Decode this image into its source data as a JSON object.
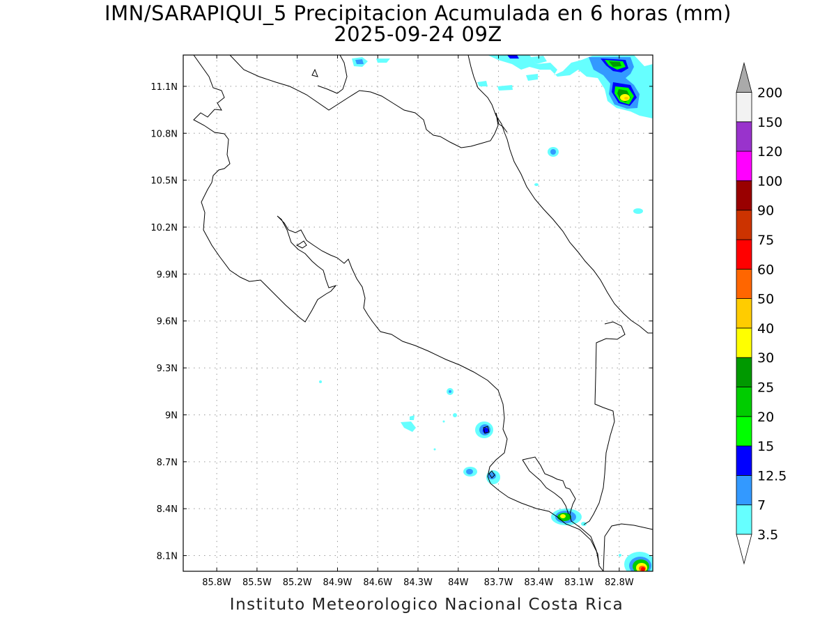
{
  "title": {
    "line1": "IMN/SARAPIQUI_5 Precipitacion Acumulada en 6 horas (mm)",
    "line2": "2025-09-24 09Z"
  },
  "footer": {
    "credit": "Instituto Meteorologico Nacional Costa Rica"
  },
  "map": {
    "lon_range": [
      -86.05,
      -82.55
    ],
    "lat_range": [
      8.0,
      11.3
    ],
    "lon_ticks": [
      {
        "value": -85.8,
        "label": "85.8W"
      },
      {
        "value": -85.5,
        "label": "85.5W"
      },
      {
        "value": -85.2,
        "label": "85.2W"
      },
      {
        "value": -84.9,
        "label": "84.9W"
      },
      {
        "value": -84.6,
        "label": "84.6W"
      },
      {
        "value": -84.3,
        "label": "84.3W"
      },
      {
        "value": -84.0,
        "label": "84W"
      },
      {
        "value": -83.7,
        "label": "83.7W"
      },
      {
        "value": -83.4,
        "label": "83.4W"
      },
      {
        "value": -83.1,
        "label": "83.1W"
      },
      {
        "value": -82.8,
        "label": "82.8W"
      }
    ],
    "lat_ticks": [
      {
        "value": 11.1,
        "label": "11.1N"
      },
      {
        "value": 10.8,
        "label": "10.8N"
      },
      {
        "value": 10.5,
        "label": "10.5N"
      },
      {
        "value": 10.2,
        "label": "10.2N"
      },
      {
        "value": 9.9,
        "label": "9.9N"
      },
      {
        "value": 9.6,
        "label": "9.6N"
      },
      {
        "value": 9.3,
        "label": "9.3N"
      },
      {
        "value": 9.0,
        "label": "9N"
      },
      {
        "value": 8.7,
        "label": "8.7N"
      },
      {
        "value": 8.4,
        "label": "8.4N"
      },
      {
        "value": 8.1,
        "label": "8.1N"
      }
    ],
    "grid": "dotted"
  },
  "colorbar": {
    "unit": "mm",
    "bins": [
      {
        "label": "3.5",
        "color": "#66ffff"
      },
      {
        "label": "7",
        "color": "#3399ff"
      },
      {
        "label": "12.5",
        "color": "#0000ff"
      },
      {
        "label": "15",
        "color": "#00ff00"
      },
      {
        "label": "20",
        "color": "#00cc00"
      },
      {
        "label": "25",
        "color": "#009900"
      },
      {
        "label": "30",
        "color": "#ffff00"
      },
      {
        "label": "40",
        "color": "#ffcc00"
      },
      {
        "label": "50",
        "color": "#ff6600"
      },
      {
        "label": "60",
        "color": "#ff0000"
      },
      {
        "label": "75",
        "color": "#cc3300"
      },
      {
        "label": "90",
        "color": "#990000"
      },
      {
        "label": "100",
        "color": "#ff00ff"
      },
      {
        "label": "120",
        "color": "#9933cc"
      },
      {
        "label": "150",
        "color": "#f2f2f2"
      },
      {
        "label": "200",
        "color": "#aaaaaa"
      }
    ]
  }
}
